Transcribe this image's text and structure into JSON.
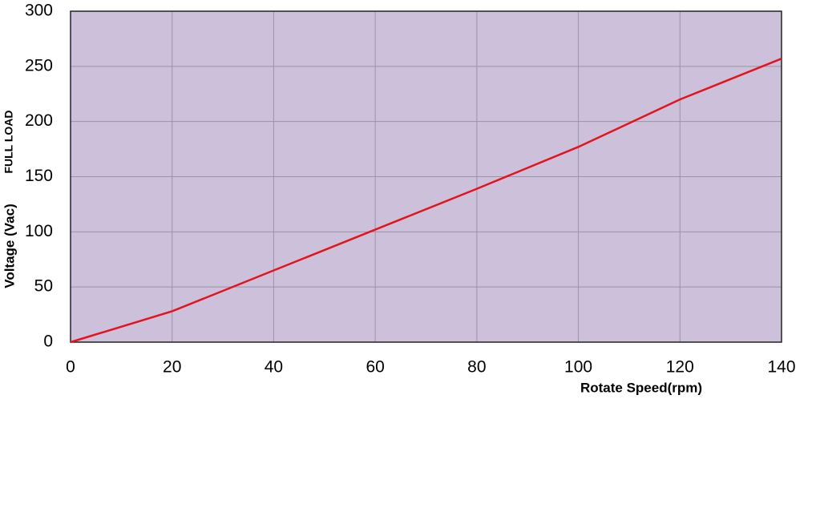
{
  "chart_data": {
    "type": "line",
    "x_label": "Rotate Speed(rpm)",
    "y_label": "Voltage (Vac)",
    "annotation": "FULL LOAD",
    "x": [
      0,
      20,
      40,
      60,
      80,
      100,
      120,
      140
    ],
    "series": [
      {
        "name": "Full load",
        "color": "#e3141d",
        "values": [
          0,
          28,
          65,
          102,
          139,
          177,
          220,
          257
        ]
      }
    ],
    "xlim": [
      0,
      140
    ],
    "xticks": [
      0,
      20,
      40,
      60,
      80,
      100,
      120,
      140
    ],
    "ylim": [
      0,
      300
    ],
    "yticks": [
      0,
      50,
      100,
      150,
      200,
      250,
      300
    ],
    "grid": true,
    "background": "#cdc0da"
  }
}
